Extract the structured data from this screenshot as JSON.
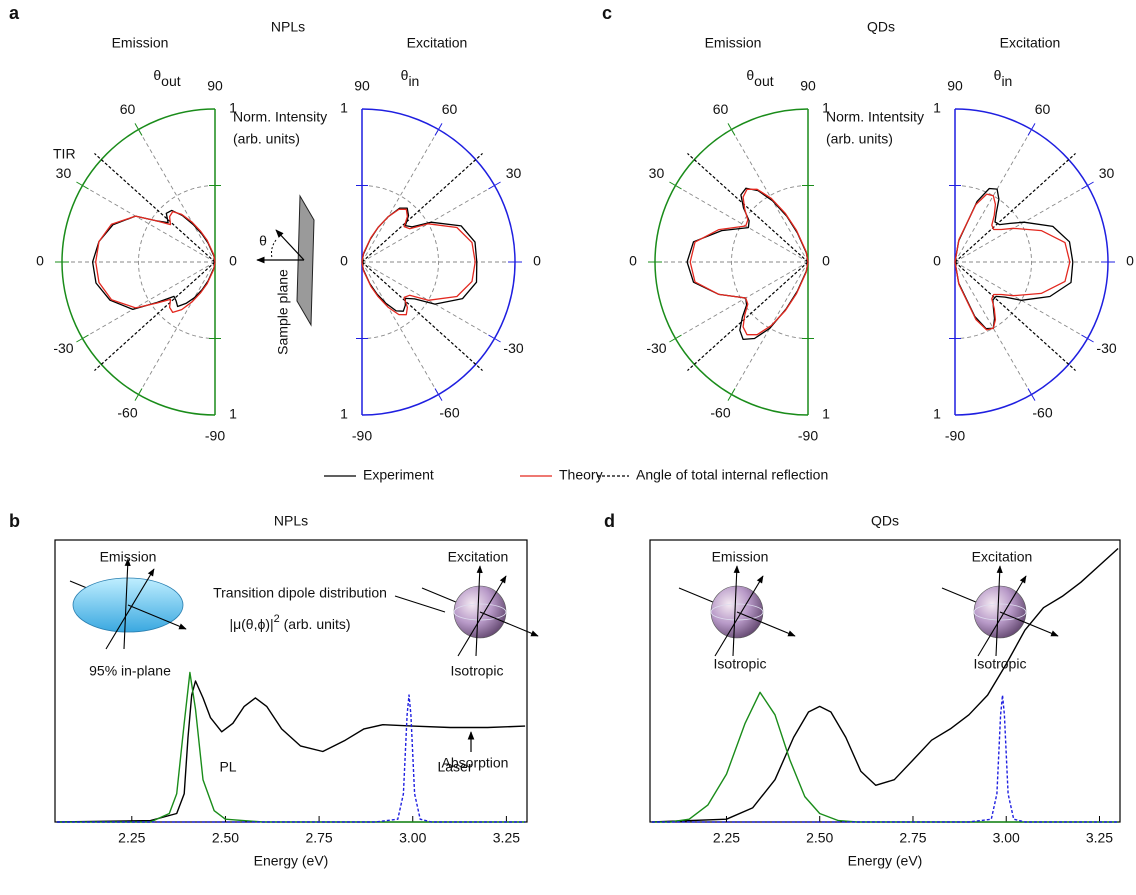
{
  "chart_data": [
    {
      "type": "polar",
      "panel": "a",
      "title": "NPLs",
      "label": "Emission",
      "angle_symbol": "θ",
      "angle_sub": "out",
      "r_label": [
        "Norm. Intensity",
        "(arb. units)"
      ],
      "annotation": "TIR",
      "color": "#1a8c1a",
      "thetaticks": [
        90,
        60,
        30,
        0,
        -30,
        -60,
        -90
      ],
      "rlim": [
        0,
        1
      ],
      "rticks": [
        0,
        1
      ],
      "rgrid": [
        0.5
      ],
      "tir_angle": 42,
      "theta": [
        -90,
        -80,
        -70,
        -65,
        -60,
        -55,
        -50,
        -45,
        -40,
        -35,
        -30,
        -20,
        -10,
        0,
        10,
        20,
        30,
        35,
        40,
        45,
        50,
        55,
        60,
        65,
        70,
        80,
        90
      ],
      "series": [
        {
          "color": "#000000",
          "values": [
            0,
            0.04,
            0.13,
            0.2,
            0.27,
            0.33,
            0.38,
            0.36,
            0.35,
            0.46,
            0.62,
            0.73,
            0.79,
            0.8,
            0.77,
            0.71,
            0.6,
            0.47,
            0.4,
            0.45,
            0.44,
            0.37,
            0.28,
            0.2,
            0.13,
            0.04,
            0
          ]
        },
        {
          "color": "#e3281f",
          "values": [
            0,
            0.05,
            0.15,
            0.22,
            0.3,
            0.38,
            0.43,
            0.42,
            0.38,
            0.47,
            0.6,
            0.72,
            0.77,
            0.78,
            0.77,
            0.72,
            0.6,
            0.47,
            0.38,
            0.42,
            0.43,
            0.38,
            0.3,
            0.22,
            0.15,
            0.05,
            0
          ]
        }
      ]
    },
    {
      "type": "polar",
      "label": "Excitation",
      "angle_symbol": "θ",
      "angle_sub": "in",
      "color": "#1f1fe0",
      "thetaticks": [
        90,
        60,
        30,
        0,
        -30,
        -60,
        -90
      ],
      "rlim": [
        0,
        1
      ],
      "rticks": [
        0,
        1
      ],
      "rgrid": [
        0.5
      ],
      "tir_angle": 42,
      "theta": [
        -90,
        -80,
        -70,
        -65,
        -60,
        -55,
        -50,
        -45,
        -40,
        -35,
        -30,
        -20,
        -10,
        0,
        10,
        20,
        30,
        35,
        40,
        45,
        50,
        55,
        60,
        65,
        70,
        80,
        90
      ],
      "series": [
        {
          "color": "#000000",
          "values": [
            0,
            0.05,
            0.15,
            0.23,
            0.31,
            0.39,
            0.42,
            0.4,
            0.37,
            0.42,
            0.55,
            0.7,
            0.76,
            0.75,
            0.75,
            0.69,
            0.52,
            0.4,
            0.37,
            0.43,
            0.46,
            0.43,
            0.34,
            0.25,
            0.16,
            0.05,
            0
          ]
        },
        {
          "color": "#e3281f",
          "values": [
            0,
            0.06,
            0.17,
            0.25,
            0.34,
            0.42,
            0.45,
            0.42,
            0.36,
            0.38,
            0.5,
            0.66,
            0.73,
            0.74,
            0.73,
            0.66,
            0.5,
            0.38,
            0.36,
            0.42,
            0.45,
            0.42,
            0.34,
            0.25,
            0.17,
            0.06,
            0
          ]
        }
      ]
    },
    {
      "type": "polar",
      "panel": "c",
      "title": "QDs",
      "label": "Emission",
      "angle_symbol": "θ",
      "angle_sub": "out",
      "r_label": [
        "Norm. Intentsity",
        "(arb. units)"
      ],
      "color": "#1a8c1a",
      "thetaticks": [
        90,
        60,
        30,
        0,
        -30,
        -60,
        -90
      ],
      "rlim": [
        0,
        1
      ],
      "rticks": [
        0,
        1
      ],
      "rgrid": [
        0.5
      ],
      "tir_angle": 42,
      "theta": [
        -90,
        -80,
        -70,
        -65,
        -60,
        -55,
        -50,
        -45,
        -40,
        -35,
        -30,
        -20,
        -10,
        0,
        10,
        20,
        30,
        35,
        40,
        45,
        50,
        55,
        60,
        65,
        70,
        80,
        90
      ],
      "series": [
        {
          "color": "#000000",
          "values": [
            0,
            0.06,
            0.2,
            0.34,
            0.5,
            0.61,
            0.66,
            0.63,
            0.56,
            0.49,
            0.47,
            0.62,
            0.76,
            0.79,
            0.76,
            0.6,
            0.45,
            0.47,
            0.55,
            0.62,
            0.63,
            0.57,
            0.46,
            0.33,
            0.2,
            0.06,
            0
          ]
        },
        {
          "color": "#e3281f",
          "values": [
            0,
            0.07,
            0.22,
            0.35,
            0.48,
            0.58,
            0.62,
            0.6,
            0.54,
            0.48,
            0.47,
            0.62,
            0.75,
            0.77,
            0.75,
            0.62,
            0.47,
            0.48,
            0.54,
            0.6,
            0.62,
            0.58,
            0.48,
            0.35,
            0.22,
            0.07,
            0
          ]
        }
      ]
    },
    {
      "type": "polar",
      "label": "Excitation",
      "angle_symbol": "θ",
      "angle_sub": "in",
      "color": "#1f1fe0",
      "thetaticks": [
        90,
        60,
        30,
        0,
        -30,
        -60,
        -90
      ],
      "rlim": [
        0,
        1
      ],
      "rticks": [
        0,
        1
      ],
      "rgrid": [
        0.5
      ],
      "tir_angle": 42,
      "theta": [
        -90,
        -80,
        -70,
        -65,
        -60,
        -55,
        -50,
        -45,
        -40,
        -35,
        -30,
        -20,
        -10,
        0,
        10,
        20,
        30,
        35,
        40,
        45,
        50,
        55,
        60,
        65,
        70,
        80,
        90
      ],
      "series": [
        {
          "color": "#000000",
          "values": [
            0,
            0.14,
            0.38,
            0.48,
            0.5,
            0.45,
            0.39,
            0.35,
            0.35,
            0.4,
            0.5,
            0.66,
            0.77,
            0.77,
            0.76,
            0.68,
            0.52,
            0.44,
            0.38,
            0.37,
            0.42,
            0.5,
            0.55,
            0.53,
            0.42,
            0.14,
            0
          ]
        },
        {
          "color": "#e3281f",
          "values": [
            0,
            0.15,
            0.4,
            0.49,
            0.5,
            0.46,
            0.4,
            0.34,
            0.33,
            0.37,
            0.44,
            0.6,
            0.73,
            0.75,
            0.73,
            0.6,
            0.44,
            0.37,
            0.33,
            0.34,
            0.4,
            0.46,
            0.5,
            0.49,
            0.4,
            0.15,
            0
          ]
        }
      ]
    },
    {
      "type": "line",
      "panel": "b",
      "title": "NPLs",
      "xlabel": "Energy (eV)",
      "xlim": [
        2.045,
        3.305
      ],
      "ylim": [
        0,
        1
      ],
      "xticks": [
        2.25,
        {
          "value": 2.5,
          "label": "2.50"
        },
        2.75,
        {
          "value": 3,
          "label": "3.00"
        },
        3.25
      ],
      "emission_label": "Emission",
      "excitation_label": "Excitation",
      "emission_note": "95% in-plane",
      "excitation_note": "Isotropic",
      "dipole_label": "Transition dipole distribution",
      "dipole_unit": [
        "|μ(θ,ϕ)|",
        "2",
        " (arb. units)"
      ],
      "series": [
        {
          "name": "Absorption",
          "color": "#000000",
          "x": [
            2.05,
            2.3,
            2.37,
            2.39,
            2.4,
            2.41,
            2.42,
            2.44,
            2.46,
            2.49,
            2.52,
            2.55,
            2.58,
            2.61,
            2.65,
            2.7,
            2.76,
            2.82,
            2.87,
            2.92,
            3.0,
            3.1,
            3.2,
            3.3
          ],
          "values": [
            0,
            0.005,
            0.03,
            0.1,
            0.3,
            0.45,
            0.5,
            0.44,
            0.37,
            0.32,
            0.35,
            0.41,
            0.44,
            0.41,
            0.33,
            0.27,
            0.25,
            0.29,
            0.33,
            0.345,
            0.34,
            0.335,
            0.335,
            0.34
          ]
        },
        {
          "name": "PL",
          "color": "#1a8c1a",
          "x": [
            2.05,
            2.3,
            2.35,
            2.37,
            2.39,
            2.405,
            2.42,
            2.44,
            2.47,
            2.5,
            2.6,
            3.3
          ],
          "values": [
            0,
            0,
            0.03,
            0.1,
            0.35,
            0.53,
            0.4,
            0.15,
            0.04,
            0.01,
            0,
            0
          ]
        },
        {
          "name": "Laser",
          "color": "#1f1fe0",
          "dash": true,
          "x": [
            2.05,
            2.9,
            2.96,
            2.975,
            2.985,
            2.99,
            2.995,
            3.005,
            3.02,
            3.05,
            3.3
          ],
          "values": [
            0,
            0,
            0.01,
            0.1,
            0.38,
            0.45,
            0.38,
            0.1,
            0.01,
            0,
            0
          ]
        }
      ]
    },
    {
      "type": "line",
      "panel": "d",
      "title": "QDs",
      "xlabel": "Energy (eV)",
      "xlim": [
        2.045,
        3.305
      ],
      "ylim": [
        0,
        1
      ],
      "xticks": [
        2.25,
        {
          "value": 2.5,
          "label": "2.50"
        },
        2.75,
        {
          "value": 3,
          "label": "3.00"
        },
        3.25
      ],
      "emission_label": "Emission",
      "excitation_label": "Excitation",
      "emission_note": "Isotropic",
      "excitation_note": "Isotropic",
      "series": [
        {
          "color": "#000000",
          "x": [
            2.05,
            2.25,
            2.32,
            2.38,
            2.43,
            2.47,
            2.5,
            2.53,
            2.57,
            2.61,
            2.65,
            2.7,
            2.75,
            2.8,
            2.85,
            2.9,
            2.95,
            3.0,
            3.05,
            3.1,
            3.15,
            3.2,
            3.25,
            3.3
          ],
          "values": [
            0,
            0.01,
            0.05,
            0.15,
            0.3,
            0.39,
            0.41,
            0.39,
            0.3,
            0.18,
            0.13,
            0.15,
            0.22,
            0.29,
            0.33,
            0.38,
            0.45,
            0.56,
            0.68,
            0.76,
            0.8,
            0.85,
            0.91,
            0.97
          ]
        },
        {
          "color": "#1a8c1a",
          "x": [
            2.05,
            2.1,
            2.15,
            2.2,
            2.25,
            2.3,
            2.34,
            2.38,
            2.42,
            2.46,
            2.5,
            2.55,
            2.6,
            3.3
          ],
          "values": [
            0,
            0,
            0.01,
            0.06,
            0.17,
            0.35,
            0.46,
            0.38,
            0.22,
            0.09,
            0.03,
            0.005,
            0,
            0
          ]
        },
        {
          "color": "#1f1fe0",
          "dash": true,
          "x": [
            2.05,
            2.9,
            2.96,
            2.975,
            2.985,
            2.99,
            2.995,
            3.005,
            3.02,
            3.05,
            3.3
          ],
          "values": [
            0,
            0,
            0.01,
            0.1,
            0.38,
            0.45,
            0.38,
            0.1,
            0.01,
            0,
            0
          ]
        }
      ]
    }
  ],
  "legend": [
    {
      "name": "Experiment",
      "color": "#000000",
      "dash": false
    },
    {
      "name": "Theory",
      "color": "#e3281f",
      "dash": false
    },
    {
      "name": "Angle of total internal reflection",
      "color": "#000000",
      "dash": true
    }
  ],
  "diagram": {
    "symbol": "θ",
    "label": "Sample plane"
  }
}
